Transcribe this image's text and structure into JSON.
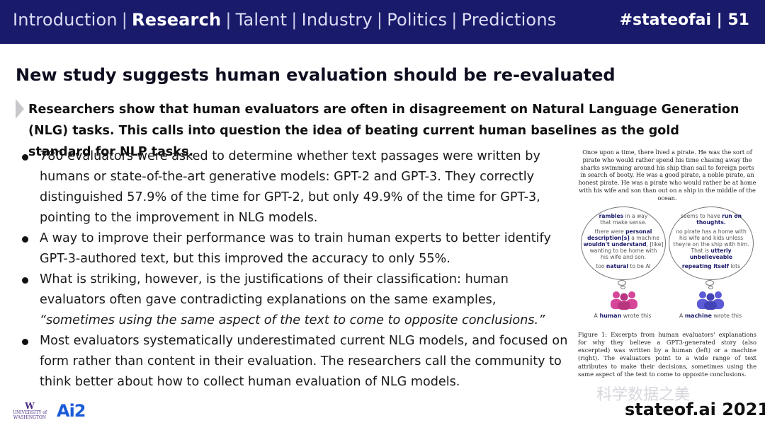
{
  "nav": {
    "items": [
      "Introduction",
      "Research",
      "Talent",
      "Industry",
      "Politics",
      "Predictions"
    ],
    "active": "Research",
    "hashtag": "#stateofai | 51"
  },
  "slide": {
    "title": "New study suggests human evaluation should be re-evaluated",
    "subhead": "Researchers show that human evaluators are often in disagreement on Natural Language Generation (NLG) tasks. This calls into question the idea of beating current human baselines as the gold standard for NLP tasks.",
    "bullets": [
      "780 evaluators were asked to determine whether text passages were written by humans or state-of-the-art generative models: GPT-2 and GPT-3. They correctly distinguished 57.9% of the time for GPT-2, but only 49.9% of the time for GPT-3, pointing to the improvement in NLG models.",
      "A way to improve their performance was to train human experts to better identify GPT-3-authored text, but this improved the accuracy to only 55%.",
      "What is striking, however, is the justifications of their classification: human evaluators often gave contradicting explanations on the same examples,",
      "Most evaluators systematically underestimated current NLG models, and focused on form rather than content in their evaluation. The researchers call the community to think better about how to collect human evaluation of NLG models."
    ],
    "quote": "“sometimes using the same aspect of the text to come to opposite conclusions.”"
  },
  "figure": {
    "story": "Once upon a time, there lived a pirate. He was the sort of pirate who would rather spend his time chasing away the sharks swimming around his ship than sail to foreign ports in search of booty. He was a good pirate, a noble pirate, an honest pirate. He was a pirate who would rather be at home with his wife and son than out on a ship in the middle of the ocean.",
    "left_bubble": {
      "l1a": "rambles",
      "l1b": " in a way",
      "l2": "that make sense.",
      "l3a": "there were ",
      "l3b": "personal",
      "l4a": "description[s]",
      "l4b": " a machine",
      "l5a": "wouldn't understand",
      "l5b": ", [like]",
      "l6": "wanting to be home with",
      "l7": "his wife and son.",
      "l8a": "too ",
      "l8b": "natural",
      "l8c": " to be AI"
    },
    "right_bubble": {
      "l1a": "seems to have ",
      "l1b": "run on",
      "l2": "thoughts.",
      "l3": "no pirate has a home with",
      "l4": "his wife and kids unless",
      "l5": "theyre on the ship with him.",
      "l6a": "That is ",
      "l6b": "utterly",
      "l7": "unbelieveable",
      "l8a": "repeating itself",
      "l8b": " lots"
    },
    "human_label_a": "A ",
    "human_label_b": "human",
    "human_label_c": " wrote this",
    "machine_label_a": "A ",
    "machine_label_b": "machine",
    "machine_label_c": " wrote this",
    "caption": "Figure 1: Excerpts from human evaluators' explanations for why they believe a GPT3-generated story (also excerpted) was written by a human (left) or a machine (right). The evaluators point to a wide range of text attributes to make their decisions, sometimes using the same aspect of the text to come to opposite conclusions."
  },
  "footer": {
    "uw_w": "W",
    "uw_text": "UNIVERSITY of WASHINGTON",
    "ai2": "Ai2",
    "watermark": "科学数据之美",
    "site": "stateof.ai 2021"
  },
  "colors": {
    "navy": "#1a1a6b",
    "human": "#d6479a",
    "machine": "#5b5bd6"
  }
}
